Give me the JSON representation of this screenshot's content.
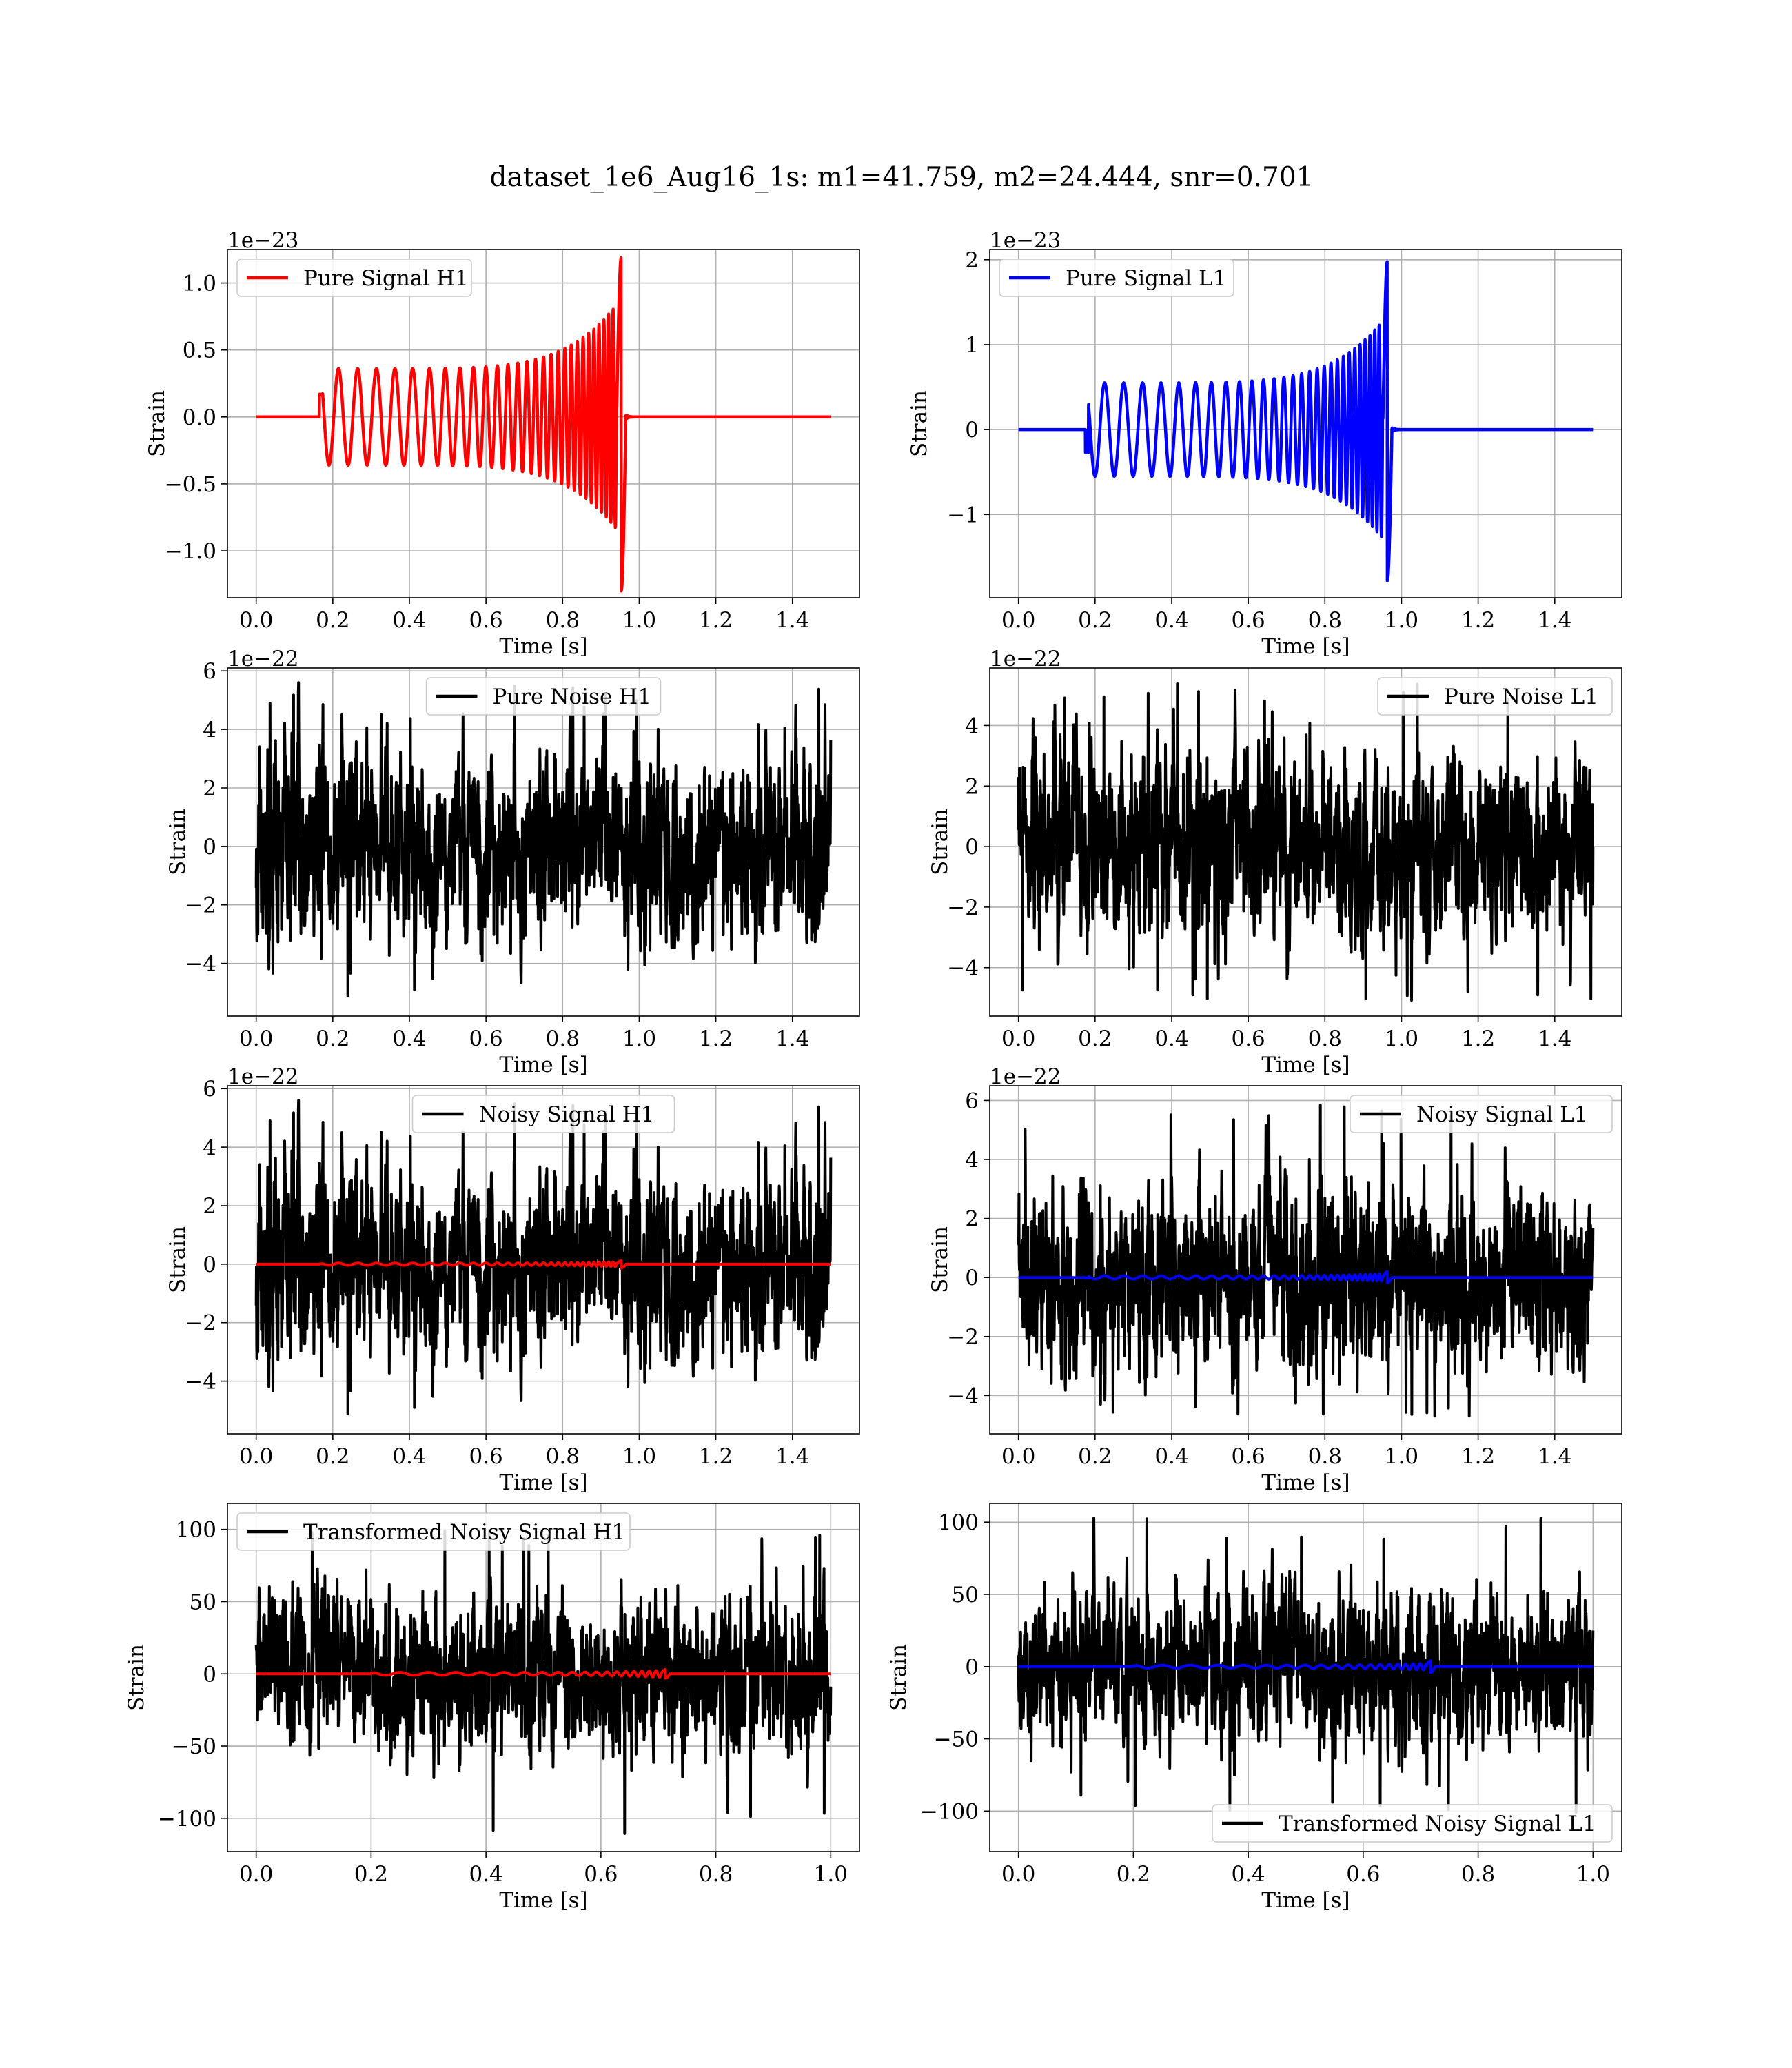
{
  "figure": {
    "title": "dataset_1e6_Aug16_1s: m1=41.759, m2=24.444, snr=0.701"
  },
  "chart_data": [
    {
      "type": "line",
      "name": "pure-signal-h1",
      "legend": "Pure Signal H1",
      "legend_loc": "upper-left",
      "xlabel": "Time [s]",
      "ylabel": "Strain",
      "offset_text": "1e−23",
      "xlim": [
        -0.075,
        1.575
      ],
      "ylim": [
        -1.35,
        1.25
      ],
      "xticks": [
        0.0,
        0.2,
        0.4,
        0.6,
        0.8,
        1.0,
        1.2,
        1.4
      ],
      "xtick_labels": [
        "0.0",
        "0.2",
        "0.4",
        "0.6",
        "0.8",
        "1.0",
        "1.2",
        "1.4"
      ],
      "yticks": [
        -1.0,
        -0.5,
        0.0,
        0.5,
        1.0
      ],
      "ytick_labels": [
        "−1.0",
        "−0.5",
        "0.0",
        "0.5",
        "1.0"
      ],
      "grid": true,
      "series": [
        {
          "color": "#ff0000",
          "kind": "chirp",
          "x_start": 0.0,
          "x_end": 1.5,
          "t_start": 0.165,
          "t_merge": 0.965,
          "amp_start": 0.17,
          "amp_inspiral": 0.36,
          "amp_peak_pos": 1.19,
          "amp_peak_neg": -1.3
        }
      ]
    },
    {
      "type": "line",
      "name": "pure-signal-l1",
      "legend": "Pure Signal L1",
      "legend_loc": "upper-left",
      "xlabel": "Time [s]",
      "ylabel": "Strain",
      "offset_text": "1e−23",
      "xlim": [
        -0.075,
        1.575
      ],
      "ylim": [
        -1.98,
        2.12
      ],
      "xticks": [
        0.0,
        0.2,
        0.4,
        0.6,
        0.8,
        1.0,
        1.2,
        1.4
      ],
      "xtick_labels": [
        "0.0",
        "0.2",
        "0.4",
        "0.6",
        "0.8",
        "1.0",
        "1.2",
        "1.4"
      ],
      "yticks": [
        -1,
        0,
        1,
        2
      ],
      "ytick_labels": [
        "−1",
        "0",
        "1",
        "2"
      ],
      "grid": true,
      "series": [
        {
          "color": "#0000ff",
          "kind": "chirp",
          "x_start": 0.0,
          "x_end": 1.5,
          "t_start": 0.175,
          "t_merge": 0.975,
          "amp_start": -0.27,
          "amp_inspiral": 0.55,
          "amp_peak_pos": 1.98,
          "amp_peak_neg": -1.78
        }
      ]
    },
    {
      "type": "line",
      "name": "pure-noise-h1",
      "legend": "Pure Noise H1",
      "legend_loc": "upper-center",
      "xlabel": "Time [s]",
      "ylabel": "Strain",
      "offset_text": "1e−22",
      "xlim": [
        -0.075,
        1.575
      ],
      "ylim": [
        -5.8,
        6.1
      ],
      "xticks": [
        0.0,
        0.2,
        0.4,
        0.6,
        0.8,
        1.0,
        1.2,
        1.4
      ],
      "xtick_labels": [
        "0.0",
        "0.2",
        "0.4",
        "0.6",
        "0.8",
        "1.0",
        "1.2",
        "1.4"
      ],
      "yticks": [
        -4,
        -2,
        0,
        2,
        4,
        6
      ],
      "ytick_labels": [
        "−4",
        "−2",
        "0",
        "2",
        "4",
        "6"
      ],
      "grid": true,
      "series": [
        {
          "color": "#000000",
          "kind": "noise",
          "x_start": 0.0,
          "x_end": 1.5,
          "std": 1.55,
          "min": -5.3,
          "max": 5.6,
          "seed": 11
        }
      ]
    },
    {
      "type": "line",
      "name": "pure-noise-l1",
      "legend": "Pure Noise L1",
      "legend_loc": "upper-right",
      "xlabel": "Time [s]",
      "ylabel": "Strain",
      "offset_text": "1e−22",
      "xlim": [
        -0.075,
        1.575
      ],
      "ylim": [
        -5.6,
        5.9
      ],
      "xticks": [
        0.0,
        0.2,
        0.4,
        0.6,
        0.8,
        1.0,
        1.2,
        1.4
      ],
      "xtick_labels": [
        "0.0",
        "0.2",
        "0.4",
        "0.6",
        "0.8",
        "1.0",
        "1.2",
        "1.4"
      ],
      "yticks": [
        -4,
        -2,
        0,
        2,
        4
      ],
      "ytick_labels": [
        "−4",
        "−2",
        "0",
        "2",
        "4"
      ],
      "grid": true,
      "series": [
        {
          "color": "#000000",
          "kind": "noise",
          "x_start": 0.0,
          "x_end": 1.5,
          "std": 1.45,
          "min": -5.1,
          "max": 5.4,
          "seed": 23
        }
      ]
    },
    {
      "type": "line",
      "name": "noisy-signal-h1",
      "legend": "Noisy Signal H1",
      "legend_loc": "upper-center",
      "xlabel": "Time [s]",
      "ylabel": "Strain",
      "offset_text": "1e−22",
      "xlim": [
        -0.075,
        1.575
      ],
      "ylim": [
        -5.8,
        6.1
      ],
      "xticks": [
        0.0,
        0.2,
        0.4,
        0.6,
        0.8,
        1.0,
        1.2,
        1.4
      ],
      "xtick_labels": [
        "0.0",
        "0.2",
        "0.4",
        "0.6",
        "0.8",
        "1.0",
        "1.2",
        "1.4"
      ],
      "yticks": [
        -4,
        -2,
        0,
        2,
        4,
        6
      ],
      "ytick_labels": [
        "−4",
        "−2",
        "0",
        "2",
        "4",
        "6"
      ],
      "grid": true,
      "series": [
        {
          "color": "#000000",
          "kind": "noise",
          "x_start": 0.0,
          "x_end": 1.5,
          "std": 1.55,
          "min": -5.3,
          "max": 5.6,
          "seed": 11
        },
        {
          "color": "#ff0000",
          "kind": "chirp",
          "x_start": 0.0,
          "x_end": 1.5,
          "t_start": 0.165,
          "t_merge": 0.965,
          "amp_start": 0.012,
          "amp_inspiral": 0.036,
          "amp_peak_pos": 0.12,
          "amp_peak_neg": -0.13
        }
      ]
    },
    {
      "type": "line",
      "name": "noisy-signal-l1",
      "legend": "Noisy Signal L1",
      "legend_loc": "upper-right",
      "xlabel": "Time [s]",
      "ylabel": "Strain",
      "offset_text": "1e−22",
      "xlim": [
        -0.075,
        1.575
      ],
      "ylim": [
        -5.3,
        6.5
      ],
      "xticks": [
        0.0,
        0.2,
        0.4,
        0.6,
        0.8,
        1.0,
        1.2,
        1.4
      ],
      "xtick_labels": [
        "0.0",
        "0.2",
        "0.4",
        "0.6",
        "0.8",
        "1.0",
        "1.2",
        "1.4"
      ],
      "yticks": [
        -4,
        -2,
        0,
        2,
        4,
        6
      ],
      "ytick_labels": [
        "−4",
        "−2",
        "0",
        "2",
        "4",
        "6"
      ],
      "grid": true,
      "series": [
        {
          "color": "#000000",
          "kind": "noise",
          "x_start": 0.0,
          "x_end": 1.5,
          "std": 1.5,
          "min": -4.7,
          "max": 6.0,
          "seed": 37
        },
        {
          "color": "#0000ff",
          "kind": "chirp",
          "x_start": 0.0,
          "x_end": 1.5,
          "t_start": 0.175,
          "t_merge": 0.975,
          "amp_start": -0.027,
          "amp_inspiral": 0.055,
          "amp_peak_pos": 0.2,
          "amp_peak_neg": -0.18
        }
      ]
    },
    {
      "type": "line",
      "name": "transformed-noisy-signal-h1",
      "legend": "Transformed Noisy Signal H1",
      "legend_loc": "upper-left",
      "xlabel": "Time [s]",
      "ylabel": "Strain",
      "offset_text": "",
      "xlim": [
        -0.05,
        1.05
      ],
      "ylim": [
        -123,
        118
      ],
      "xticks": [
        0.0,
        0.2,
        0.4,
        0.6,
        0.8,
        1.0
      ],
      "xtick_labels": [
        "0.0",
        "0.2",
        "0.4",
        "0.6",
        "0.8",
        "1.0"
      ],
      "yticks": [
        -100,
        -50,
        0,
        50,
        100
      ],
      "ytick_labels": [
        "−100",
        "−50",
        "0",
        "50",
        "100"
      ],
      "grid": true,
      "series": [
        {
          "color": "#000000",
          "kind": "noise",
          "x_start": 0.0,
          "x_end": 1.0,
          "std": 25,
          "min": -112,
          "max": 103,
          "seed": 53
        },
        {
          "color": "#ff0000",
          "kind": "chirp",
          "x_start": 0.0,
          "x_end": 1.0,
          "t_start": 0.2,
          "t_merge": 0.72,
          "amp_start": 0.5,
          "amp_inspiral": 1.0,
          "amp_peak_pos": 3.0,
          "amp_peak_neg": -3.0
        }
      ]
    },
    {
      "type": "line",
      "name": "transformed-noisy-signal-l1",
      "legend": "Transformed Noisy Signal L1",
      "legend_loc": "lower-right",
      "xlabel": "Time [s]",
      "ylabel": "Strain",
      "offset_text": "",
      "xlim": [
        -0.05,
        1.05
      ],
      "ylim": [
        -128,
        113
      ],
      "xticks": [
        0.0,
        0.2,
        0.4,
        0.6,
        0.8,
        1.0
      ],
      "xtick_labels": [
        "0.0",
        "0.2",
        "0.4",
        "0.6",
        "0.8",
        "1.0"
      ],
      "yticks": [
        -100,
        -50,
        0,
        50,
        100
      ],
      "ytick_labels": [
        "−100",
        "−50",
        "0",
        "50",
        "100"
      ],
      "grid": true,
      "series": [
        {
          "color": "#000000",
          "kind": "noise",
          "x_start": 0.0,
          "x_end": 1.0,
          "std": 25,
          "min": -102,
          "max": 103,
          "seed": 71
        },
        {
          "color": "#0000ff",
          "kind": "chirp",
          "x_start": 0.0,
          "x_end": 1.0,
          "t_start": 0.2,
          "t_merge": 0.725,
          "amp_start": 0.5,
          "amp_inspiral": 1.0,
          "amp_peak_pos": 4.0,
          "amp_peak_neg": -4.0
        }
      ]
    }
  ]
}
